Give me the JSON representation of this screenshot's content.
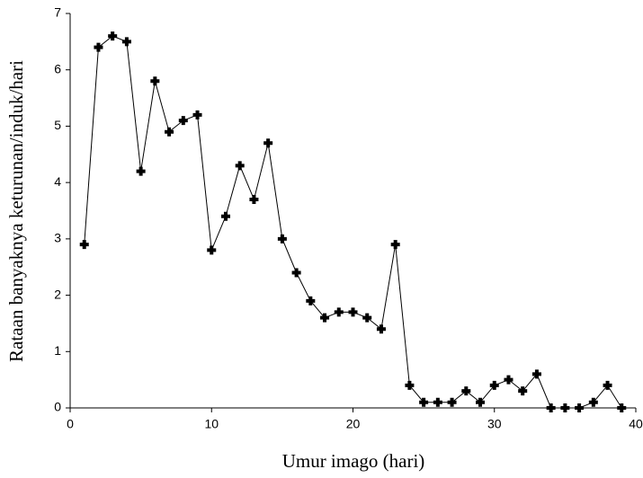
{
  "chart_data": {
    "type": "line",
    "x_label": "Umur imago (hari)",
    "y_label": "Rataan banyaknya keturunan/induk/hari",
    "x": [
      1,
      2,
      3,
      4,
      5,
      6,
      7,
      8,
      9,
      10,
      11,
      12,
      13,
      14,
      15,
      16,
      17,
      18,
      19,
      20,
      21,
      22,
      23,
      24,
      25,
      26,
      27,
      28,
      29,
      30,
      31,
      32,
      33,
      34,
      35,
      36,
      37,
      38,
      39
    ],
    "values": [
      2.9,
      6.4,
      6.6,
      6.5,
      4.2,
      5.8,
      4.9,
      5.1,
      5.2,
      2.8,
      3.4,
      4.3,
      3.7,
      4.7,
      3.0,
      2.4,
      1.9,
      1.6,
      1.7,
      1.7,
      1.6,
      1.4,
      2.9,
      0.4,
      0.1,
      0.1,
      0.1,
      0.3,
      0.1,
      0.4,
      0.5,
      0.3,
      0.6,
      0,
      0,
      0,
      0.1,
      0.4,
      0
    ],
    "color": "#000000",
    "xlim": [
      0,
      40
    ],
    "xticks": [
      0,
      10,
      20,
      30,
      40
    ],
    "ylim": [
      0,
      7
    ],
    "yticks": [
      0,
      1,
      2,
      3,
      4,
      5,
      6,
      7
    ],
    "grid": false
  }
}
